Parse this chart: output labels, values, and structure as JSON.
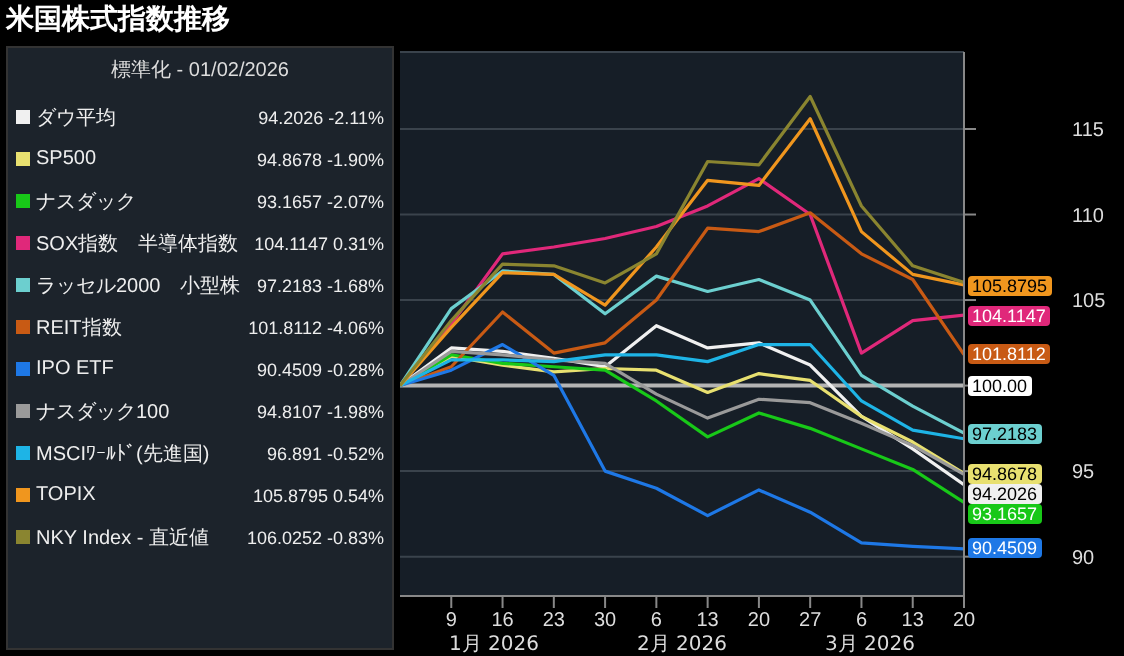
{
  "chart_data": {
    "type": "line",
    "title": "米国株式指数推移",
    "legend_title": "標準化 - 01/02/2026",
    "x": [
      "2026-01-02",
      "2026-01-09",
      "2026-01-16",
      "2026-01-23",
      "2026-01-30",
      "2026-02-06",
      "2026-02-13",
      "2026-02-20",
      "2026-02-27",
      "2026-03-06",
      "2026-03-13",
      "2026-03-20"
    ],
    "xlim": [
      "2026-01-02",
      "2026-03-20"
    ],
    "xticks": [
      {
        "value": "2026-01-09",
        "label": "9"
      },
      {
        "value": "2026-01-16",
        "label": "16"
      },
      {
        "value": "2026-01-23",
        "label": "23"
      },
      {
        "value": "2026-01-30",
        "label": "30"
      },
      {
        "value": "2026-02-06",
        "label": "6"
      },
      {
        "value": "2026-02-13",
        "label": "13"
      },
      {
        "value": "2026-02-20",
        "label": "20"
      },
      {
        "value": "2026-02-27",
        "label": "27"
      },
      {
        "value": "2026-03-06",
        "label": "6"
      },
      {
        "value": "2026-03-13",
        "label": "13"
      },
      {
        "value": "2026-03-20",
        "label": "20"
      }
    ],
    "ylim": [
      87.7,
      119.5
    ],
    "yticks": [
      90,
      95,
      {
        "value": 100,
        "label": null
      },
      105,
      110,
      115
    ],
    "grid": "y",
    "legend": "left",
    "marker": "none",
    "line_style": "solid",
    "ref_lines": [
      {
        "axis": "y",
        "value": 100,
        "label": "100.00",
        "color": "#b4b4b4"
      }
    ],
    "annotations": [
      "94.2026 -2.11%",
      "94.8678 -1.90%",
      "93.1657 -2.07%",
      "104.1147 0.31%",
      "97.2183 -1.68%",
      "101.8112 -4.06%",
      "90.4509 -0.28%",
      "94.8107 -1.98%",
      "96.891 -0.52%",
      "105.8795 0.54%",
      "106.0252 -0.83%",
      "1月 2026",
      "2月 2026",
      "3月 2026"
    ],
    "series": [
      {
        "name": "ダウ平均",
        "color": "#f0f0f0",
        "values": [
          100,
          102.2,
          102.0,
          101.6,
          101.1,
          103.5,
          102.2,
          102.5,
          101.2,
          98.2,
          96.3,
          94.2026
        ],
        "value_labels": [
          null,
          null,
          null,
          null,
          null,
          null,
          null,
          null,
          null,
          null,
          null,
          "94.2026"
        ]
      },
      {
        "name": "SP500",
        "color": "#e8e070",
        "values": [
          100,
          101.7,
          101.2,
          100.8,
          101.0,
          100.9,
          99.6,
          100.7,
          100.3,
          98.2,
          96.7,
          94.8678
        ],
        "value_labels": [
          null,
          null,
          null,
          null,
          null,
          null,
          null,
          null,
          null,
          null,
          null,
          "94.8678"
        ]
      },
      {
        "name": "ナスダック",
        "color": "#18c818",
        "values": [
          100,
          101.8,
          101.3,
          101.1,
          100.9,
          99.1,
          97.0,
          98.4,
          97.5,
          96.3,
          95.1,
          93.1657
        ],
        "value_labels": [
          null,
          null,
          null,
          null,
          null,
          null,
          null,
          null,
          null,
          null,
          null,
          "93.1657"
        ]
      },
      {
        "name": "SOX指数　半導体指数",
        "color": "#e0287a",
        "values": [
          100,
          103.6,
          107.7,
          108.1,
          108.6,
          109.3,
          110.5,
          112.1,
          110.0,
          101.9,
          103.8,
          104.1147
        ],
        "value_labels": [
          null,
          null,
          null,
          null,
          null,
          null,
          null,
          null,
          null,
          null,
          null,
          "104.1147"
        ]
      },
      {
        "name": "ラッセル2000　小型株",
        "color": "#6ccfcf",
        "values": [
          100,
          104.5,
          106.7,
          106.5,
          104.2,
          106.4,
          105.5,
          106.2,
          105.0,
          100.6,
          98.8,
          97.2183
        ],
        "value_labels": [
          null,
          null,
          null,
          null,
          null,
          null,
          null,
          null,
          null,
          null,
          null,
          "97.2183"
        ]
      },
      {
        "name": "REIT指数",
        "color": "#c85a14",
        "values": [
          100,
          101.1,
          104.3,
          101.9,
          102.5,
          105.0,
          109.2,
          109.0,
          110.1,
          107.7,
          106.2,
          101.8112
        ],
        "value_labels": [
          null,
          null,
          null,
          null,
          null,
          null,
          null,
          null,
          null,
          null,
          null,
          "101.8112"
        ]
      },
      {
        "name": "IPO ETF",
        "color": "#1e78e6",
        "values": [
          100,
          100.9,
          102.4,
          100.6,
          95.0,
          94.0,
          92.4,
          93.9,
          92.6,
          90.8,
          90.6,
          90.4509
        ],
        "value_labels": [
          null,
          null,
          null,
          null,
          null,
          null,
          null,
          null,
          null,
          null,
          null,
          "90.4509"
        ]
      },
      {
        "name": "ナスダック100",
        "color": "#9a9a9a",
        "values": [
          100,
          102.0,
          101.8,
          101.5,
          101.3,
          99.5,
          98.1,
          99.2,
          99.0,
          97.8,
          96.5,
          94.8107
        ]
      },
      {
        "name": "MSCIﾜｰﾙﾄﾞ(先進国)",
        "color": "#1eb4e6",
        "values": [
          100,
          101.5,
          101.5,
          101.4,
          101.8,
          101.8,
          101.4,
          102.4,
          102.4,
          99.1,
          97.4,
          96.891
        ]
      },
      {
        "name": "TOPIX",
        "color": "#f0961e",
        "values": [
          100,
          103.4,
          106.6,
          106.5,
          104.7,
          108.1,
          112.0,
          111.7,
          115.6,
          109.0,
          106.5,
          105.8795
        ],
        "value_labels": [
          null,
          null,
          null,
          null,
          null,
          null,
          null,
          null,
          null,
          null,
          null,
          "105.8795"
        ]
      },
      {
        "name": "NKY Index - 直近値",
        "color": "#8a8530",
        "values": [
          100,
          103.8,
          107.1,
          107.0,
          106.0,
          107.7,
          113.1,
          112.9,
          116.9,
          110.5,
          107.0,
          106.0252
        ]
      }
    ]
  }
}
